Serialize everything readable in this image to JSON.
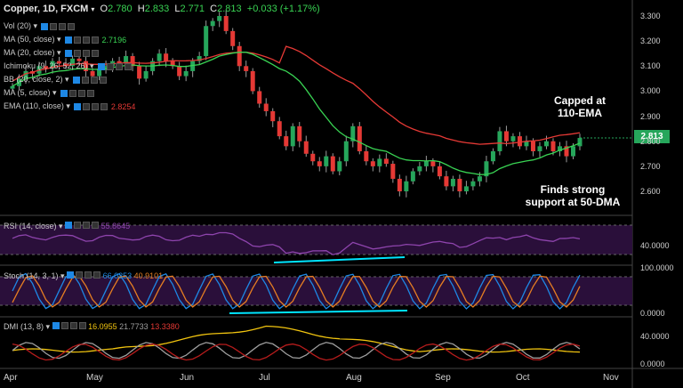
{
  "header": {
    "symbol": "Copper, 1D, FXCM",
    "open_label": "O",
    "open": "2.780",
    "high_label": "H",
    "high": "2.833",
    "low_label": "L",
    "low": "2.771",
    "close_label": "C",
    "close": "2.813",
    "change": "+0.033 (+1.17%)"
  },
  "indicators": [
    {
      "label": "Vol (20)",
      "value": "",
      "color": "#c8c8c8"
    },
    {
      "label": "MA (50, close)",
      "value": "2.7196",
      "color": "#39d353"
    },
    {
      "label": "MA (20, close)",
      "value": "",
      "color": "#c8c8c8"
    },
    {
      "label": "Ichimoku (9, 26, 52, 26)",
      "value": "",
      "color": "#c8c8c8"
    },
    {
      "label": "BB (20, close, 2)",
      "value": "",
      "color": "#c8c8c8"
    },
    {
      "label": "MA (5, close)",
      "value": "",
      "color": "#c8c8c8"
    },
    {
      "label": "EMA (110, close)",
      "value": "2.8254",
      "color": "#e53935"
    }
  ],
  "annotations": {
    "top": "Capped at\n110-EMA",
    "bottom": "Finds strong\nsupport at 50-DMA"
  },
  "price_tag": "2.813",
  "price_axis": [
    "3.300",
    "3.200",
    "3.100",
    "3.000",
    "2.900",
    "2.800",
    "2.700",
    "2.600"
  ],
  "rsi": {
    "label": "RSI (14, close)",
    "value": "55.8645",
    "axis": [
      "40.0000"
    ]
  },
  "stoch": {
    "label": "Stoch (14, 3, 1)",
    "k": "66.0353",
    "d": "40.9101",
    "axis": [
      "100.0000",
      "0.0000"
    ]
  },
  "dmi": {
    "label": "DMI (13, 8)",
    "v1": "16.0955",
    "v2": "21.7733",
    "v3": "13.3380",
    "axis": [
      "40.0000",
      "0.0000"
    ]
  },
  "months": [
    "Apr",
    "May",
    "Jun",
    "Jul",
    "Aug",
    "Sep",
    "Oct",
    "Nov"
  ],
  "colors": {
    "up": "#26a65b",
    "down": "#e53935",
    "ema110": "#e53935",
    "ma50": "#39d353",
    "rsi": "#8e44ad",
    "stoch_k": "#1e88e5",
    "stoch_d": "#e67e22",
    "dmi_adx": "#f1c40f",
    "dmi_plus": "#9e9e9e",
    "dmi_minus": "#b71c1c",
    "trendline": "#00e5ff"
  },
  "chart_data": {
    "type": "candlestick",
    "title": "Copper, 1D, FXCM",
    "ylim": [
      2.55,
      3.33
    ],
    "x": [
      "Apr",
      "May",
      "Jun",
      "Jul",
      "Aug",
      "Sep",
      "Oct",
      "Nov"
    ],
    "series": [
      {
        "name": "Copper",
        "close_path": [
          3.02,
          3.05,
          3.08,
          3.07,
          3.1,
          3.09,
          3.12,
          3.11,
          3.1,
          3.13,
          3.12,
          3.08,
          3.06,
          3.09,
          3.1,
          3.12,
          3.11,
          3.14,
          3.1,
          3.05,
          3.08,
          3.12,
          3.15,
          3.12,
          3.1,
          3.06,
          3.08,
          3.12,
          3.14,
          3.26,
          3.28,
          3.3,
          3.24,
          3.18,
          3.1,
          3.08,
          3.0,
          2.95,
          2.92,
          2.88,
          2.82,
          2.78,
          2.86,
          2.8,
          2.75,
          2.72,
          2.7,
          2.74,
          2.68,
          2.72,
          2.8,
          2.86,
          2.76,
          2.72,
          2.7,
          2.73,
          2.71,
          2.65,
          2.6,
          2.64,
          2.68,
          2.7,
          2.72,
          2.7,
          2.66,
          2.62,
          2.65,
          2.6,
          2.62,
          2.64,
          2.66,
          2.72,
          2.76,
          2.84,
          2.8,
          2.82,
          2.78,
          2.8,
          2.76,
          2.78,
          2.8,
          2.76,
          2.78,
          2.74,
          2.78,
          2.813
        ]
      },
      {
        "name": "EMA (110, close)",
        "last": 2.8254
      },
      {
        "name": "MA (50, close)",
        "last": 2.7196
      }
    ]
  }
}
